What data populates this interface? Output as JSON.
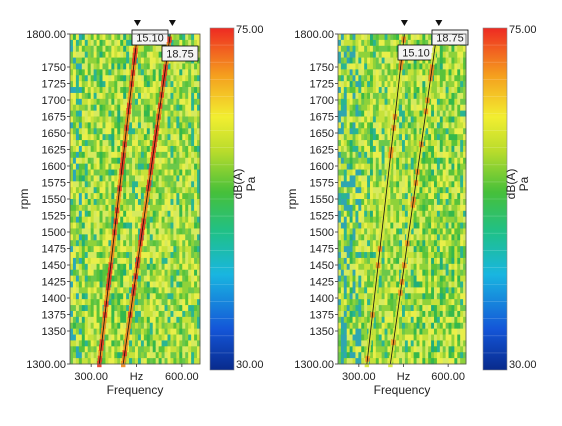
{
  "chart_data": [
    {
      "type": "heatmap",
      "xlabel": "Frequency",
      "ylabel": "rpm",
      "x_ticks": [
        "300.00",
        "Hz",
        "600.00"
      ],
      "y_ticks": [
        "1800.00",
        "1750",
        "1725",
        "1700",
        "1675",
        "1650",
        "1625",
        "1600",
        "1575",
        "1550",
        "1525",
        "1500",
        "1475",
        "1450",
        "1425",
        "1400",
        "1375",
        "1350",
        "1300.00"
      ],
      "ylim": [
        1300,
        1800
      ],
      "colorbar": {
        "max_label": "75.00",
        "min_label": "30.00",
        "unit_labels": [
          "dB(A)",
          "Pa"
        ],
        "range": [
          30,
          75
        ]
      },
      "orders": [
        {
          "label": "15.10",
          "freq_at_1300": 327,
          "freq_at_1800": 453
        },
        {
          "label": "18.75",
          "freq_at_1300": 406,
          "freq_at_1800": 562
        }
      ]
    },
    {
      "type": "heatmap",
      "xlabel": "Frequency",
      "ylabel": "rpm",
      "x_ticks": [
        "300.00",
        "Hz",
        "600.00"
      ],
      "y_ticks": [
        "1800.00",
        "1750",
        "1725",
        "1700",
        "1675",
        "1650",
        "1625",
        "1600",
        "1575",
        "1550",
        "1525",
        "1500",
        "1475",
        "1450",
        "1425",
        "1400",
        "1375",
        "1350",
        "1300.00"
      ],
      "ylim": [
        1300,
        1800
      ],
      "colorbar": {
        "max_label": "75.00",
        "min_label": "30.00",
        "unit_labels": [
          "dB(A)",
          "Pa"
        ],
        "range": [
          30,
          75
        ]
      },
      "orders": [
        {
          "label": "15.10",
          "freq_at_1300": 327,
          "freq_at_1800": 453
        },
        {
          "label": "18.75",
          "freq_at_1300": 406,
          "freq_at_1800": 562
        }
      ]
    }
  ]
}
